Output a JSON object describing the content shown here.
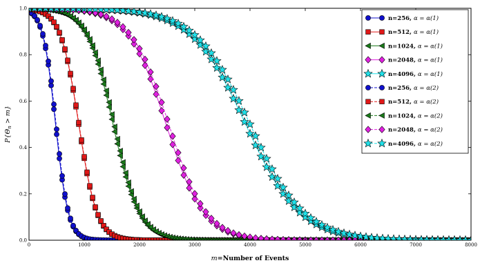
{
  "chart_data": {
    "type": "line",
    "xlabel": "m=Number of Events",
    "xlabel_parts": {
      "var": "m",
      "rest": "=Number of Events"
    },
    "ylabel": "P{Θ_n > m}",
    "ylabel_parts": {
      "prefix": "P{Θ",
      "sub": "n",
      "suffix": " > m}"
    },
    "xlim": [
      0,
      8000
    ],
    "ylim": [
      0,
      1.0
    ],
    "xticks": [
      "0",
      "1000",
      "2000",
      "3000",
      "4000",
      "5000",
      "6000",
      "7000",
      "8000"
    ],
    "xtick_values": [
      0,
      1000,
      2000,
      3000,
      4000,
      5000,
      6000,
      7000,
      8000
    ],
    "yticks": [
      "0.0",
      "0.2",
      "0.4",
      "0.6",
      "0.8",
      "1.0"
    ],
    "ytick_values": [
      0,
      0.2,
      0.4,
      0.6,
      0.8,
      1.0
    ],
    "grid": false,
    "legend_position": "top-right",
    "series": [
      {
        "name": "n=256",
        "alpha": "α = α(1)",
        "marker": "circle",
        "color": "#1010cc",
        "linestyle": "solid",
        "midpoint": 480,
        "width": 115,
        "step": 50
      },
      {
        "name": "n=512",
        "alpha": "α = α(1)",
        "marker": "square",
        "color": "#e01818",
        "linestyle": "solid",
        "midpoint": 900,
        "width": 165,
        "step": 50
      },
      {
        "name": "n=1024",
        "alpha": "α = α(1)",
        "marker": "triangle",
        "color": "#1a7a1a",
        "linestyle": "solid",
        "midpoint": 1520,
        "width": 235,
        "step": 50
      },
      {
        "name": "n=2048",
        "alpha": "α = α(1)",
        "marker": "diamond",
        "color": "#e020e0",
        "linestyle": "solid",
        "midpoint": 2480,
        "width": 340,
        "step": 100
      },
      {
        "name": "n=4096",
        "alpha": "α = α(1)",
        "marker": "star",
        "color": "#20e0e8",
        "linestyle": "solid",
        "midpoint": 3920,
        "width": 490,
        "step": 100
      },
      {
        "name": "n=256",
        "alpha": "α = α(2)",
        "marker": "circle",
        "color": "#1010cc",
        "linestyle": "dashed",
        "midpoint": 490,
        "width": 115,
        "step": 50
      },
      {
        "name": "n=512",
        "alpha": "α = α(2)",
        "marker": "square",
        "color": "#e01818",
        "linestyle": "dashed",
        "midpoint": 905,
        "width": 165,
        "step": 50
      },
      {
        "name": "n=1024",
        "alpha": "α = α(2)",
        "marker": "triangle",
        "color": "#1a7a1a",
        "linestyle": "dashed",
        "midpoint": 1540,
        "width": 235,
        "step": 50
      },
      {
        "name": "n=2048",
        "alpha": "α = α(2)",
        "marker": "diamond",
        "color": "#e020e0",
        "linestyle": "dashed",
        "midpoint": 2530,
        "width": 340,
        "step": 100
      },
      {
        "name": "n=4096",
        "alpha": "α = α(2)",
        "marker": "star",
        "color": "#20e0e8",
        "linestyle": "dashed",
        "midpoint": 4000,
        "width": 490,
        "step": 100
      }
    ]
  }
}
